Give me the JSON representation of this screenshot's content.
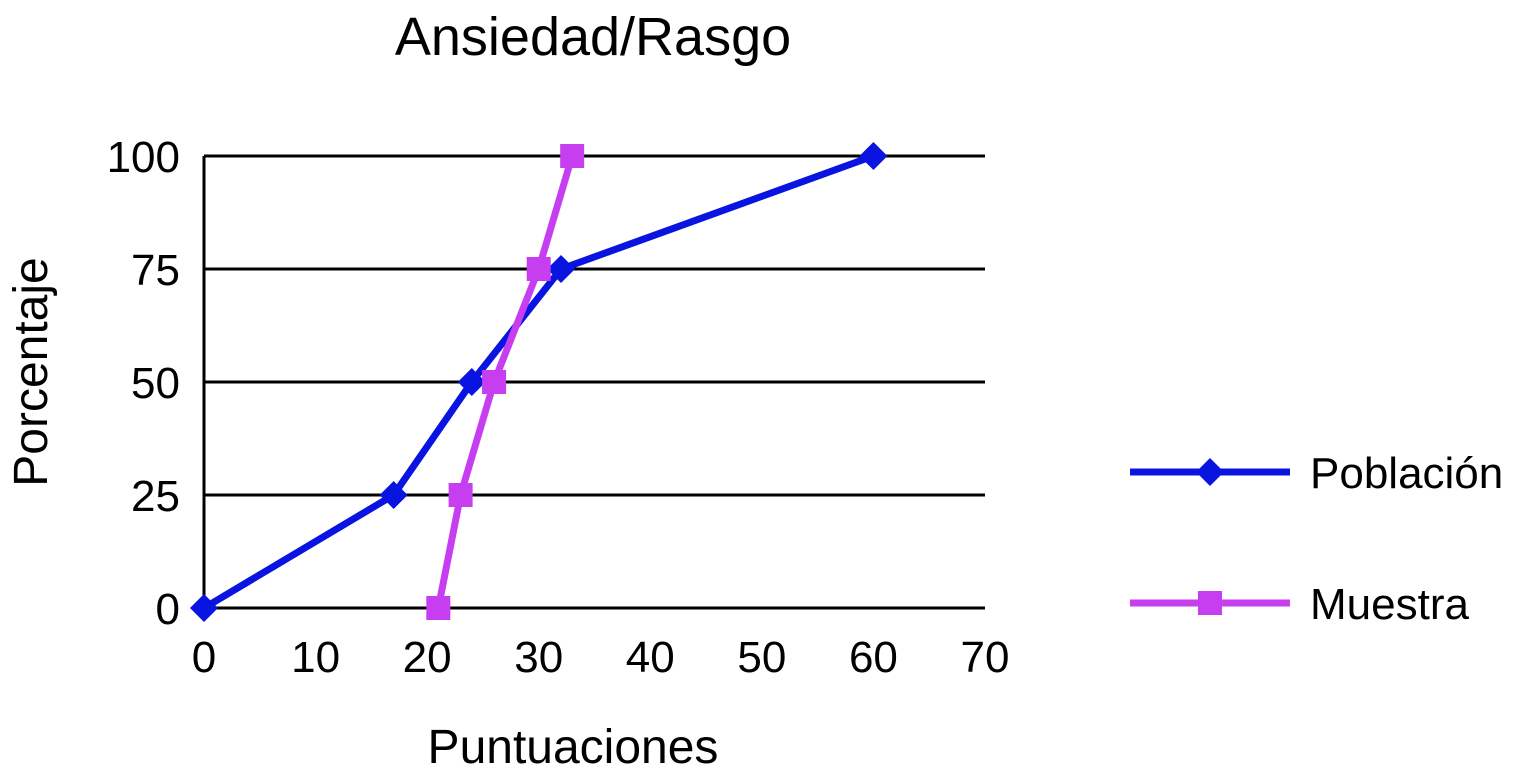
{
  "chart_data": {
    "type": "line",
    "title": "Ansiedad/Rasgo",
    "xlabel": "Puntuaciones",
    "ylabel": "Porcentaje",
    "xlim": [
      0,
      70
    ],
    "ylim": [
      0,
      100
    ],
    "xticks": [
      "0",
      "10",
      "20",
      "30",
      "40",
      "50",
      "60",
      "70"
    ],
    "yticks": [
      "0",
      "25",
      "50",
      "75",
      "100"
    ],
    "grid": "horizontal",
    "legend_position": "right",
    "series": [
      {
        "name": "Población",
        "color": "#0a14e0",
        "marker": "diamond",
        "points": [
          {
            "x": 0,
            "y": 0
          },
          {
            "x": 17,
            "y": 25
          },
          {
            "x": 24,
            "y": 50
          },
          {
            "x": 32,
            "y": 75
          },
          {
            "x": 60,
            "y": 100
          }
        ]
      },
      {
        "name": "Muestra",
        "color": "#c63ef0",
        "marker": "square",
        "points": [
          {
            "x": 21,
            "y": 0
          },
          {
            "x": 23,
            "y": 25
          },
          {
            "x": 26,
            "y": 50
          },
          {
            "x": 30,
            "y": 75
          },
          {
            "x": 33,
            "y": 100
          }
        ]
      }
    ]
  }
}
